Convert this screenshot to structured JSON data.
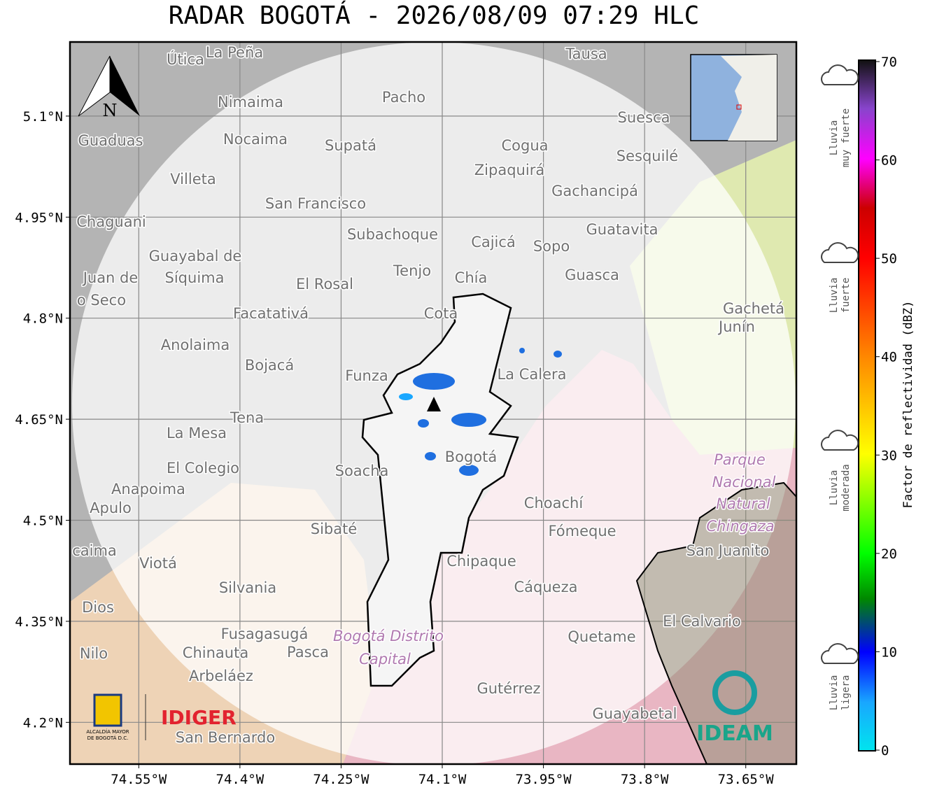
{
  "title": "RADAR BOGOTÁ - 2026/08/09 07:29 HLC",
  "map": {
    "lon_range": [
      -74.652,
      -73.575
    ],
    "lat_range": [
      4.138,
      5.21
    ],
    "grid": true,
    "lon_ticks": [
      {
        "value": -74.55,
        "label": "74.55°W"
      },
      {
        "value": -74.4,
        "label": "74.4°W"
      },
      {
        "value": -74.25,
        "label": "74.25°W"
      },
      {
        "value": -74.1,
        "label": "74.1°W"
      },
      {
        "value": -73.95,
        "label": "73.95°W"
      },
      {
        "value": -73.8,
        "label": "73.8°W"
      },
      {
        "value": -73.65,
        "label": "73.65°W"
      }
    ],
    "lat_ticks": [
      {
        "value": 5.1,
        "label": "5.1°N"
      },
      {
        "value": 4.95,
        "label": "4.95°N"
      },
      {
        "value": 4.8,
        "label": "4.8°N"
      },
      {
        "value": 4.65,
        "label": "4.65°N"
      },
      {
        "value": 4.5,
        "label": "4.5°N"
      },
      {
        "value": 4.35,
        "label": "4.35°N"
      },
      {
        "value": 4.2,
        "label": "4.2°N"
      }
    ],
    "north_label": "N",
    "places": [
      "Útica",
      "La Peña",
      "Tausa",
      "Pacho",
      "Nimaima",
      "Guaduas",
      "Nocaima",
      "Supatá",
      "Cogua",
      "Suesca",
      "Sesquilé",
      "Zipaquirá",
      "Villeta",
      "Gachancipá",
      "San Francisco",
      "Chaguani",
      "Guatavita",
      "Subachoque",
      "Cajicá",
      "Sopo",
      "Guayabal de",
      "Síquima",
      "Tenjo",
      "Chía",
      "Guasca",
      "Juan de",
      "o Seco",
      "El Rosal",
      "Facatativá",
      "Cota",
      "Gachetá",
      "Junín",
      "Anolaima",
      "Bojacá",
      "Funza",
      "La Calera",
      "Tena",
      "La Mesa",
      "Soacha",
      "Bogotá",
      "El Colegio",
      "Anapoima",
      "Apulo",
      "Choachí",
      "Sibaté",
      "Fómeque",
      "San Juanito",
      "caima",
      "Viotá",
      "Chipaque",
      "Silvania",
      "Cáqueza",
      "Dios",
      "El Calvario",
      "Fusagasugá",
      "Quetame",
      "Nilo",
      "Chinauta",
      "Pasca",
      "Arbeláez",
      "Gutérrez",
      "Guayabetal",
      "San Bernardo"
    ],
    "park_labels": [
      "Parque",
      "Nacional",
      "Natural",
      "Chingaza",
      "Bogotá Distrito",
      "Capital"
    ]
  },
  "colorbar": {
    "label": "Factor de reflectividad (dBZ)",
    "range": [
      0,
      70
    ],
    "ticks": [
      0,
      10,
      20,
      30,
      40,
      50,
      60,
      70
    ],
    "categories": [
      [
        "Lluvia",
        "ligera"
      ],
      [
        "Lluvia",
        "moderada"
      ],
      [
        "Lluvia",
        "fuerte"
      ],
      [
        "Lluvia",
        "muy fuerte"
      ]
    ]
  },
  "logos": {
    "alcaldia": [
      "ALCALDÍA MAYOR",
      "DE BOGOTÁ D.C."
    ],
    "idiger": "IDIGER",
    "ideam": "IDEAM"
  }
}
